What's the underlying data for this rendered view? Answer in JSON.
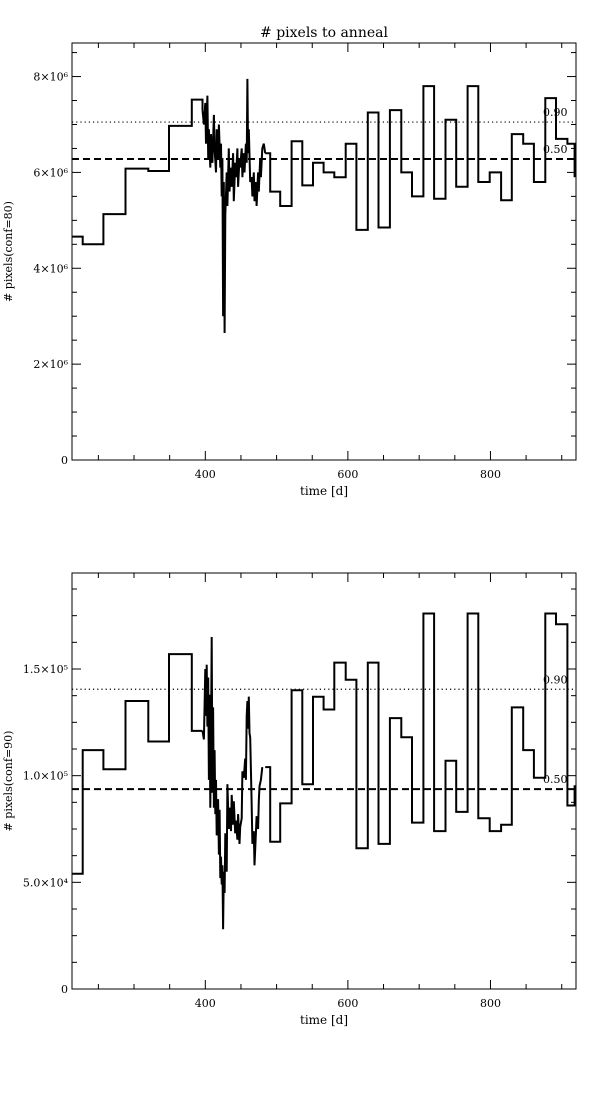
{
  "title": "# pixels to anneal",
  "chart_data": [
    {
      "type": "line",
      "title": "# pixels to anneal",
      "xlabel": "time [d]",
      "ylabel": "# pixels(conf=80)",
      "xlim": [
        213,
        920
      ],
      "ylim": [
        0,
        8700000
      ],
      "xticks": [
        400,
        600,
        800
      ],
      "xtick_labels": [
        "400",
        "600",
        "800"
      ],
      "yticks": [
        0,
        2000000,
        4000000,
        6000000,
        8000000
      ],
      "ytick_labels": [
        "0",
        "2×10⁶",
        "4×10⁶",
        "6×10⁶",
        "8×10⁶"
      ],
      "reference_lines": [
        {
          "label": "0.90",
          "y": 7050000,
          "style": "dotted"
        },
        {
          "label": "0.50",
          "y": 6280000,
          "style": "dashed"
        }
      ],
      "series": [
        {
          "step": [
            [
              213,
              4660000
            ],
            [
              228,
              4500000
            ],
            [
              257,
              5130000
            ],
            [
              288,
              6080000
            ],
            [
              320,
              6030000
            ],
            [
              349,
              6970000
            ],
            [
              381,
              7520000
            ],
            [
              396,
              7300000
            ]
          ]
        },
        {
          "line": [
            [
              396,
              7300000
            ],
            [
              398,
              7000000
            ],
            [
              400,
              7450000
            ],
            [
              401,
              6600000
            ],
            [
              403,
              7600000
            ],
            [
              404,
              6300000
            ],
            [
              405,
              6900000
            ],
            [
              407,
              6100000
            ],
            [
              408,
              6800000
            ],
            [
              410,
              6200000
            ],
            [
              412,
              7200000
            ],
            [
              413,
              6500000
            ],
            [
              415,
              6000000
            ],
            [
              416,
              6900000
            ],
            [
              418,
              6300000
            ],
            [
              419,
              7000000
            ],
            [
              421,
              6100000
            ],
            [
              422,
              6600000
            ],
            [
              423,
              5500000
            ],
            [
              424,
              6300000
            ],
            [
              425,
              3000000
            ],
            [
              426,
              5800000
            ],
            [
              427,
              2650000
            ],
            [
              428,
              5100000
            ],
            [
              430,
              6000000
            ],
            [
              431,
              5300000
            ],
            [
              433,
              6500000
            ],
            [
              434,
              5600000
            ],
            [
              436,
              6100000
            ],
            [
              437,
              5700000
            ],
            [
              439,
              6400000
            ],
            [
              440,
              5400000
            ],
            [
              442,
              6200000
            ],
            [
              443,
              5900000
            ],
            [
              445,
              6500000
            ],
            [
              446,
              5700000
            ],
            [
              448,
              6300000
            ],
            [
              449,
              6100000
            ],
            [
              451,
              6500000
            ],
            [
              452,
              5900000
            ],
            [
              454,
              6400000
            ],
            [
              455,
              6000000
            ],
            [
              457,
              6600000
            ],
            [
              458,
              6200000
            ],
            [
              459,
              7950000
            ],
            [
              460,
              6400000
            ],
            [
              461,
              6900000
            ],
            [
              463,
              5800000
            ],
            [
              465,
              5900000
            ],
            [
              466,
              5500000
            ],
            [
              468,
              6000000
            ],
            [
              469,
              5400000
            ],
            [
              471,
              5800000
            ],
            [
              472,
              5300000
            ],
            [
              474,
              6000000
            ],
            [
              475,
              5600000
            ],
            [
              477,
              6300000
            ],
            [
              478,
              5900000
            ],
            [
              480,
              6500000
            ],
            [
              482,
              6600000
            ],
            [
              484,
              6400000
            ]
          ]
        },
        {
          "step": [
            [
              484,
              6400000
            ],
            [
              491,
              5600000
            ],
            [
              505,
              5300000
            ],
            [
              521,
              6650000
            ],
            [
              536,
              5730000
            ],
            [
              551,
              6200000
            ],
            [
              566,
              6000000
            ],
            [
              581,
              5900000
            ],
            [
              597,
              6600000
            ],
            [
              612,
              4800000
            ],
            [
              628,
              7250000
            ],
            [
              643,
              4850000
            ],
            [
              659,
              7300000
            ],
            [
              675,
              6000000
            ],
            [
              690,
              5500000
            ],
            [
              706,
              7800000
            ],
            [
              721,
              5450000
            ],
            [
              737,
              7100000
            ],
            [
              752,
              5700000
            ],
            [
              768,
              7800000
            ],
            [
              783,
              5800000
            ],
            [
              799,
              6000000
            ],
            [
              815,
              5420000
            ],
            [
              830,
              6800000
            ],
            [
              846,
              6600000
            ],
            [
              861,
              5800000
            ],
            [
              877,
              7550000
            ],
            [
              892,
              6700000
            ],
            [
              908,
              6600000
            ],
            [
              918,
              5920000
            ],
            [
              920,
              5920000
            ]
          ]
        }
      ]
    },
    {
      "type": "line",
      "title": "",
      "xlabel": "time [d]",
      "ylabel": "# pixels(conf=90)",
      "xlim": [
        213,
        920
      ],
      "ylim": [
        0,
        195000
      ],
      "xticks": [
        400,
        600,
        800
      ],
      "xtick_labels": [
        "400",
        "600",
        "800"
      ],
      "yticks": [
        0,
        50000,
        100000,
        150000
      ],
      "ytick_labels": [
        "0",
        "5.0×10⁴",
        "1.0×10⁵",
        "1.5×10⁵"
      ],
      "reference_lines": [
        {
          "label": "0.90",
          "y": 140500,
          "style": "dotted"
        },
        {
          "label": "0.50",
          "y": 93700,
          "style": "dashed"
        }
      ],
      "series": [
        {
          "step": [
            [
              213,
              54000
            ],
            [
              228,
              112000
            ],
            [
              257,
              103000
            ],
            [
              288,
              135000
            ],
            [
              320,
              116000
            ],
            [
              349,
              157000
            ],
            [
              381,
              121000
            ],
            [
              396,
              121000
            ]
          ]
        },
        {
          "line": [
            [
              396,
              121000
            ],
            [
              398,
              117000
            ],
            [
              400,
              150000
            ],
            [
              401,
              128000
            ],
            [
              402,
              152000
            ],
            [
              403,
              123000
            ],
            [
              404,
              146000
            ],
            [
              405,
              98000
            ],
            [
              406,
              138000
            ],
            [
              407,
              85000
            ],
            [
              408,
              118000
            ],
            [
              409,
              165000
            ],
            [
              410,
              92000
            ],
            [
              411,
              132000
            ],
            [
              412,
              85000
            ],
            [
              413,
              112000
            ],
            [
              414,
              82000
            ],
            [
              415,
              98000
            ],
            [
              416,
              72000
            ],
            [
              418,
              89000
            ],
            [
              419,
              63000
            ],
            [
              420,
              84000
            ],
            [
              421,
              52000
            ],
            [
              422,
              62000
            ],
            [
              423,
              49000
            ],
            [
              424,
              58000
            ],
            [
              425,
              28000
            ],
            [
              426,
              55000
            ],
            [
              427,
              45000
            ],
            [
              428,
              73000
            ],
            [
              430,
              55000
            ],
            [
              431,
              96000
            ],
            [
              433,
              75000
            ],
            [
              434,
              85000
            ],
            [
              436,
              74000
            ],
            [
              437,
              91000
            ],
            [
              439,
              77000
            ],
            [
              440,
              88000
            ],
            [
              442,
              73000
            ],
            [
              443,
              79000
            ],
            [
              445,
              70000
            ],
            [
              446,
              82000
            ],
            [
              448,
              68000
            ],
            [
              449,
              76000
            ],
            [
              451,
              80000
            ],
            [
              452,
              102000
            ],
            [
              454,
              99000
            ],
            [
              456,
              108000
            ],
            [
              457,
              98000
            ],
            [
              458,
              128000
            ],
            [
              459,
              135000
            ],
            [
              460,
              122000
            ],
            [
              461,
              137000
            ],
            [
              462,
              120000
            ],
            [
              463,
              118000
            ],
            [
              465,
              88000
            ],
            [
              466,
              68000
            ],
            [
              468,
              74000
            ],
            [
              469,
              58000
            ],
            [
              471,
              73000
            ],
            [
              472,
              81000
            ],
            [
              474,
              75000
            ],
            [
              475,
              88000
            ],
            [
              476,
              95000
            ],
            [
              478,
              98000
            ],
            [
              480,
              104000
            ]
          ]
        },
        {
          "step": [
            [
              484,
              104000
            ],
            [
              491,
              69000
            ],
            [
              505,
              87000
            ],
            [
              521,
              140000
            ],
            [
              536,
              96000
            ],
            [
              551,
              137000
            ],
            [
              566,
              131000
            ],
            [
              581,
              153000
            ],
            [
              597,
              145000
            ],
            [
              612,
              66000
            ],
            [
              628,
              153000
            ],
            [
              643,
              68000
            ],
            [
              659,
              127000
            ],
            [
              675,
              118000
            ],
            [
              690,
              78000
            ],
            [
              706,
              176000
            ],
            [
              721,
              74000
            ],
            [
              737,
              107000
            ],
            [
              752,
              83000
            ],
            [
              768,
              176000
            ],
            [
              783,
              80000
            ],
            [
              799,
              74000
            ],
            [
              815,
              77000
            ],
            [
              830,
              132000
            ],
            [
              846,
              112000
            ],
            [
              861,
              99000
            ],
            [
              877,
              176000
            ],
            [
              892,
              171000
            ],
            [
              908,
              86000
            ],
            [
              918,
              95000
            ],
            [
              920,
              95000
            ]
          ]
        }
      ]
    }
  ]
}
